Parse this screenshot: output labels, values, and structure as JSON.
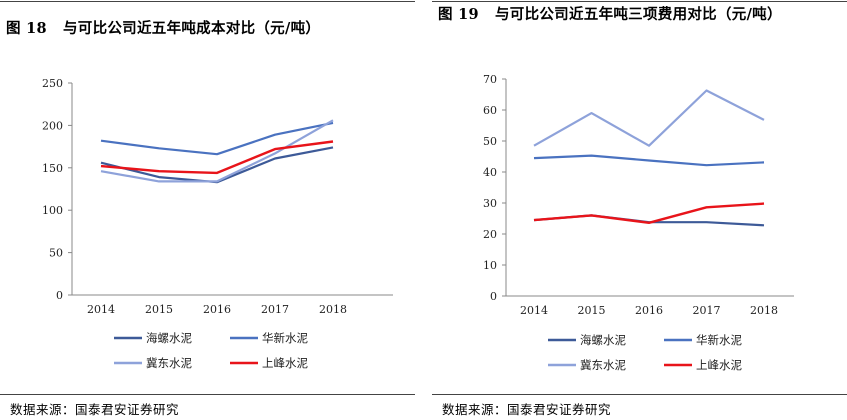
{
  "charts": [
    {
      "figure_label": "图 18",
      "title": "与可比公司近五年吨成本对比（元/吨）",
      "source": "数据来源：国泰君安证券研究"
    },
    {
      "figure_label": "图 19",
      "title": "与可比公司近五年吨三项费用对比（元/吨）",
      "source": "数据来源：国泰君安证券研究"
    }
  ],
  "colors": {
    "海螺水泥": "#3D5A98",
    "华新水泥": "#4A72C0",
    "冀东水泥": "#8EA2DA",
    "上峰水泥": "#E8141A"
  },
  "chart_data": [
    {
      "type": "line",
      "title": "与可比公司近五年吨成本对比（元/吨）",
      "categories": [
        "2014",
        "2015",
        "2016",
        "2017",
        "2018"
      ],
      "ylim": [
        0,
        250
      ],
      "yticks": [
        0,
        50,
        100,
        150,
        200,
        250
      ],
      "grid": false,
      "legend": "bottom",
      "series": [
        {
          "name": "海螺水泥",
          "values": [
            156,
            139,
            133,
            161,
            174
          ]
        },
        {
          "name": "华新水泥",
          "values": [
            182,
            173,
            166,
            189,
            203
          ]
        },
        {
          "name": "冀东水泥",
          "values": [
            146,
            134,
            134,
            167,
            206
          ]
        },
        {
          "name": "上峰水泥",
          "values": [
            152,
            146,
            144,
            172,
            181
          ]
        }
      ]
    },
    {
      "type": "line",
      "title": "与可比公司近五年吨三项费用对比（元/吨）",
      "categories": [
        "2014",
        "2015",
        "2016",
        "2017",
        "2018"
      ],
      "ylim": [
        0,
        70
      ],
      "yticks": [
        0,
        10,
        20,
        30,
        40,
        50,
        60,
        70
      ],
      "grid": false,
      "legend": "bottom",
      "series": [
        {
          "name": "海螺水泥",
          "values": [
            24.5,
            26.0,
            23.8,
            23.8,
            22.8
          ]
        },
        {
          "name": "华新水泥",
          "values": [
            44.5,
            45.3,
            43.7,
            42.2,
            43.1
          ]
        },
        {
          "name": "冀东水泥",
          "values": [
            48.5,
            59.0,
            48.5,
            66.3,
            56.8
          ]
        },
        {
          "name": "上峰水泥",
          "values": [
            24.5,
            26.0,
            23.6,
            28.6,
            29.8
          ]
        }
      ]
    }
  ]
}
